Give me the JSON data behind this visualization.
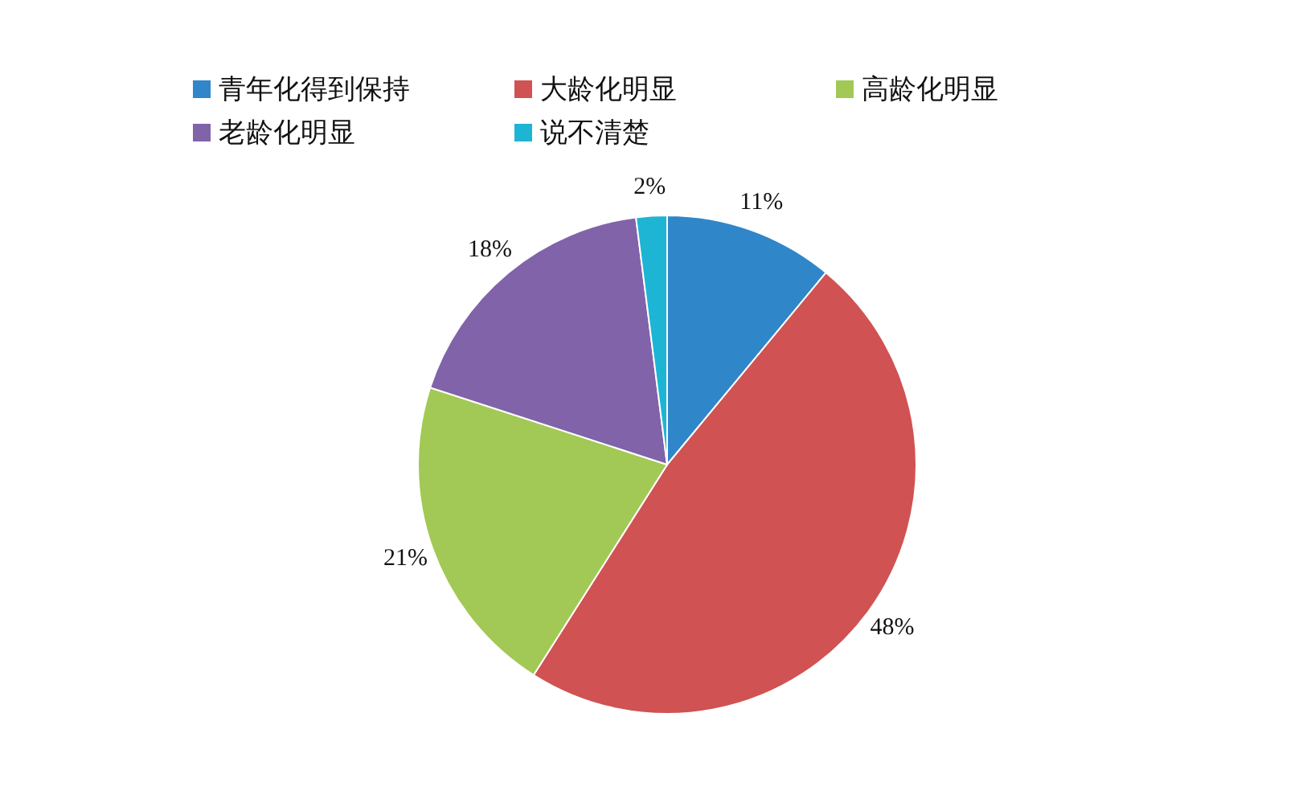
{
  "chart_data": {
    "type": "pie",
    "categories": [
      "青年化得到保持",
      "大龄化明显",
      "高龄化明显",
      "老龄化明显",
      "说不清楚"
    ],
    "values": [
      11,
      48,
      21,
      18,
      2
    ],
    "colors": [
      "#2f86c9",
      "#d05253",
      "#a2c955",
      "#8163a9",
      "#1db5d3"
    ],
    "value_labels": [
      "11%",
      "48%",
      "21%",
      "18%",
      "2%"
    ],
    "legend": "top"
  }
}
